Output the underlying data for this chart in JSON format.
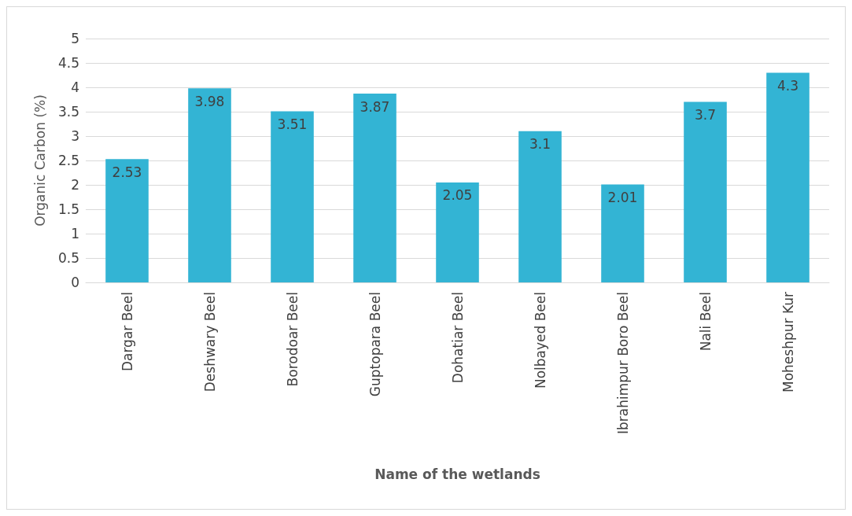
{
  "chart_data": {
    "type": "bar",
    "xlabel": "Name of the wetlands",
    "ylabel": "Organic Carbon (%)",
    "categories": [
      "Dargar Beel",
      "Deshwary Beel",
      "Borodoar Beel",
      "Guptopara Beel",
      "Dohatiar Beel",
      "Nolbayed Beel",
      "Ibrahimpur Boro Beel",
      "Nali Beel",
      "Moheshpur Kur"
    ],
    "values": [
      2.53,
      3.98,
      3.51,
      3.87,
      2.05,
      3.1,
      2.01,
      3.7,
      4.3
    ],
    "color": "#33b4d4",
    "ylim": [
      0,
      5
    ],
    "yticks": [
      0,
      0.5,
      1,
      1.5,
      2,
      2.5,
      3,
      3.5,
      4,
      4.5,
      5
    ],
    "grid": "y",
    "data_labels": true
  }
}
